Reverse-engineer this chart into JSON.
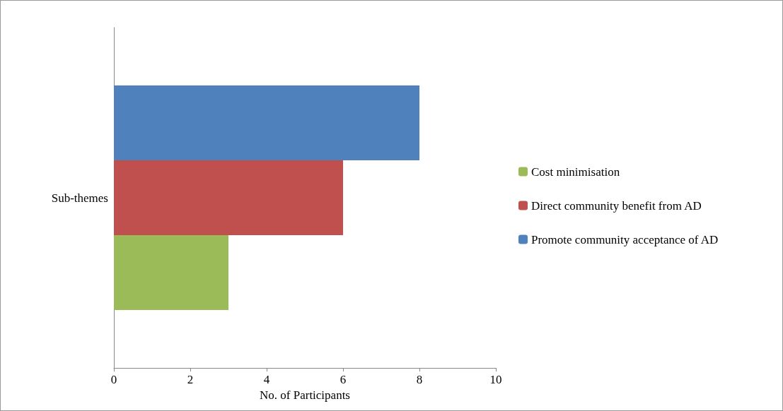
{
  "chart_data": {
    "type": "bar",
    "orientation": "horizontal",
    "categories": [
      "Sub-themes"
    ],
    "xlabel": "No. of Participants",
    "series": [
      {
        "name": "Promote community acceptance of AD",
        "color": "#4f81bd",
        "values": [
          8
        ]
      },
      {
        "name": "Direct community benefit from AD",
        "color": "#c0504d",
        "values": [
          6
        ]
      },
      {
        "name": "Cost minimisation",
        "color": "#9bbb59",
        "values": [
          3
        ]
      }
    ],
    "xlim": [
      0,
      10
    ],
    "xticks": [
      0,
      2,
      4,
      6,
      8,
      10
    ],
    "grid": false,
    "legend": "right"
  }
}
